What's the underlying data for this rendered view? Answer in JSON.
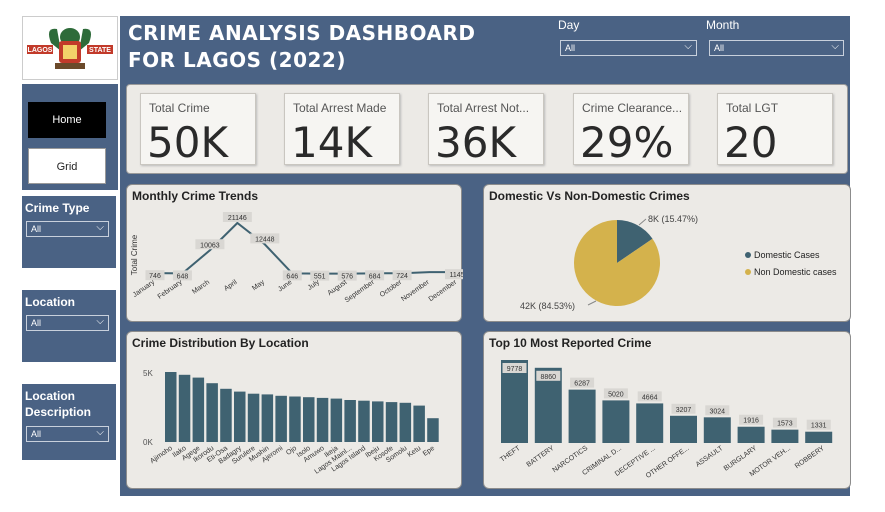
{
  "header": {
    "title": "CRIME ANALYSIS  DASHBOARD FOR LAGOS (2022)",
    "logo_left": "LAGOS",
    "logo_right": "STATE"
  },
  "filters": {
    "day": {
      "label": "Day",
      "value": "All"
    },
    "month": {
      "label": "Month",
      "value": "All"
    },
    "crime_type": {
      "label": "Crime Type",
      "value": "All"
    },
    "location": {
      "label": "Location",
      "value": "All"
    },
    "location_description": {
      "label": "Location Description",
      "value": "All"
    }
  },
  "nav": {
    "home": "Home",
    "grid": "Grid"
  },
  "kpis": [
    {
      "label": "Total Crime",
      "value": "50K"
    },
    {
      "label": "Total Arrest Made",
      "value": "14K"
    },
    {
      "label": "Total Arrest Not...",
      "value": "36K"
    },
    {
      "label": "Crime Clearance...",
      "value": "29%"
    },
    {
      "label": "Total LGT",
      "value": "20"
    }
  ],
  "colors": {
    "accent": "#4a6284",
    "bar": "#3f6271",
    "pie_domestic": "#3f6271",
    "pie_non": "#d4b24c"
  },
  "chart_data": [
    {
      "type": "line",
      "title": "Monthly Crime Trends",
      "ylabel": "Total Crime",
      "xlabel": "",
      "categories": [
        "January",
        "February",
        "March",
        "April",
        "May",
        "June",
        "July",
        "August",
        "September",
        "October",
        "November",
        "December"
      ],
      "values": [
        746,
        648,
        10063,
        21146,
        12448,
        646,
        551,
        576,
        684,
        724,
        1145,
        1145
      ],
      "labels": [
        "746",
        "648",
        "10063",
        "21146",
        "12448",
        "646",
        "551",
        "576",
        "684",
        "724",
        "",
        "1145"
      ]
    },
    {
      "type": "pie",
      "title": "Domestic Vs Non-Domestic Crimes",
      "categories": [
        "Domestic Cases",
        "Non Domestic cases"
      ],
      "values": [
        7735,
        42265
      ],
      "data_labels": [
        "8K (15.47%)",
        "42K (84.53%)"
      ],
      "legend": "right"
    },
    {
      "type": "bar",
      "title": "Crime Distribution By Location",
      "categories": [
        "Ajimoho",
        "Ilako",
        "Agege",
        "Ikorodu",
        "Eti-Osa",
        "Badagry",
        "Surulere",
        "Mushin",
        "Ajeromi",
        "Ojo",
        "Isolo",
        "Amuwo",
        "Ikeja",
        "Lagos Mainl...",
        "Lagos Island",
        "Ibeju",
        "Kosofe",
        "Somolu",
        "Ketu",
        "Epe"
      ],
      "values": [
        5000,
        4800,
        4600,
        4200,
        3800,
        3600,
        3450,
        3400,
        3300,
        3250,
        3200,
        3150,
        3100,
        3000,
        2950,
        2900,
        2850,
        2800,
        2600,
        1700
      ],
      "ylim": [
        0,
        6000
      ],
      "yticks": [
        "0K",
        "5K"
      ]
    },
    {
      "type": "bar",
      "title": "Top 10 Most Reported Crime",
      "categories": [
        "THEFT",
        "BATTERY",
        "NARCOTICS",
        "CRIMINAL D...",
        "DECEPTIVE ...",
        "OTHER OFFE...",
        "ASSAULT",
        "BURGLARY",
        "MOTOR VEH...",
        "ROBBERY"
      ],
      "values": [
        9778,
        8860,
        6287,
        5020,
        4664,
        3207,
        3024,
        1916,
        1573,
        1331
      ],
      "ylim": [
        0,
        10000
      ]
    }
  ]
}
